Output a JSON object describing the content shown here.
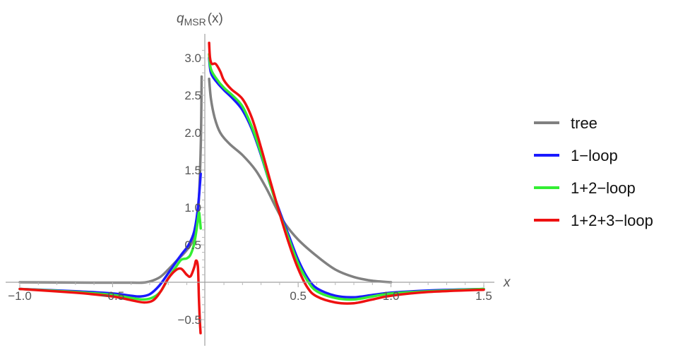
{
  "chart_data": {
    "type": "line",
    "ylabel_main": "q",
    "ylabel_sub": "MSR",
    "ylabel_suffix": "(x)",
    "xlabel": "x",
    "xlim": [
      -1.0,
      1.5
    ],
    "ylim": [
      -0.65,
      3.2
    ],
    "x_ticks": [
      {
        "value": -1.0,
        "label": "−1.0"
      },
      {
        "value": -0.5,
        "label": "−0.5"
      },
      {
        "value": 0.5,
        "label": "0.5"
      },
      {
        "value": 1.0,
        "label": "1.0"
      },
      {
        "value": 1.5,
        "label": "1.5"
      }
    ],
    "y_ticks": [
      {
        "value": -0.5,
        "label": "−0.5"
      },
      {
        "value": 0.5,
        "label": "0.5"
      },
      {
        "value": 1.0,
        "label": "1.0"
      },
      {
        "value": 1.5,
        "label": "1.5"
      },
      {
        "value": 2.0,
        "label": "2.0"
      },
      {
        "value": 2.5,
        "label": "2.5"
      },
      {
        "value": 3.0,
        "label": "3.0"
      }
    ],
    "grid": false,
    "legend_position": "right",
    "series": [
      {
        "name": "tree",
        "color": "#808080",
        "segments": [
          [
            [
              -1.0,
              0.0
            ],
            [
              -0.6,
              -0.005
            ],
            [
              -0.4,
              -0.005
            ],
            [
              -0.32,
              0.0
            ],
            [
              -0.25,
              0.06
            ],
            [
              -0.2,
              0.17
            ],
            [
              -0.15,
              0.3
            ],
            [
              -0.1,
              0.43
            ],
            [
              -0.06,
              0.6
            ],
            [
              -0.04,
              0.9
            ],
            [
              -0.025,
              1.8
            ],
            [
              -0.02,
              2.75
            ]
          ],
          [
            [
              0.02,
              2.72
            ],
            [
              0.03,
              2.45
            ],
            [
              0.05,
              2.2
            ],
            [
              0.08,
              2.0
            ],
            [
              0.13,
              1.85
            ],
            [
              0.2,
              1.7
            ],
            [
              0.27,
              1.5
            ],
            [
              0.33,
              1.25
            ],
            [
              0.38,
              1.0
            ],
            [
              0.43,
              0.78
            ],
            [
              0.5,
              0.57
            ],
            [
              0.6,
              0.35
            ],
            [
              0.7,
              0.17
            ],
            [
              0.8,
              0.07
            ],
            [
              0.9,
              0.02
            ],
            [
              1.0,
              0.0
            ]
          ]
        ]
      },
      {
        "name": "1-loop",
        "color": "#1a1aff",
        "segments": [
          [
            [
              -1.0,
              -0.09
            ],
            [
              -0.7,
              -0.12
            ],
            [
              -0.5,
              -0.15
            ],
            [
              -0.4,
              -0.18
            ],
            [
              -0.35,
              -0.19
            ],
            [
              -0.3,
              -0.16
            ],
            [
              -0.25,
              -0.05
            ],
            [
              -0.2,
              0.12
            ],
            [
              -0.15,
              0.3
            ],
            [
              -0.12,
              0.4
            ],
            [
              -0.09,
              0.5
            ],
            [
              -0.06,
              0.68
            ],
            [
              -0.04,
              1.0
            ],
            [
              -0.025,
              1.45
            ]
          ],
          [
            [
              0.02,
              3.0
            ],
            [
              0.03,
              2.8
            ],
            [
              0.06,
              2.68
            ],
            [
              0.1,
              2.57
            ],
            [
              0.15,
              2.45
            ],
            [
              0.2,
              2.3
            ],
            [
              0.25,
              2.05
            ],
            [
              0.3,
              1.7
            ],
            [
              0.35,
              1.3
            ],
            [
              0.4,
              0.95
            ],
            [
              0.45,
              0.62
            ],
            [
              0.5,
              0.3
            ],
            [
              0.55,
              0.06
            ],
            [
              0.6,
              -0.08
            ],
            [
              0.7,
              -0.18
            ],
            [
              0.8,
              -0.2
            ],
            [
              0.9,
              -0.17
            ],
            [
              1.0,
              -0.14
            ],
            [
              1.2,
              -0.11
            ],
            [
              1.5,
              -0.09
            ]
          ]
        ]
      },
      {
        "name": "1+2-loop",
        "color": "#33ee33",
        "segments": [
          [
            [
              -1.0,
              -0.09
            ],
            [
              -0.7,
              -0.13
            ],
            [
              -0.5,
              -0.17
            ],
            [
              -0.4,
              -0.21
            ],
            [
              -0.33,
              -0.23
            ],
            [
              -0.28,
              -0.2
            ],
            [
              -0.24,
              -0.12
            ],
            [
              -0.2,
              0.05
            ],
            [
              -0.16,
              0.2
            ],
            [
              -0.13,
              0.3
            ],
            [
              -0.1,
              0.32
            ],
            [
              -0.08,
              0.37
            ],
            [
              -0.06,
              0.52
            ],
            [
              -0.045,
              0.75
            ],
            [
              -0.035,
              0.93
            ],
            [
              -0.03,
              0.85
            ],
            [
              -0.025,
              0.72
            ]
          ],
          [
            [
              0.02,
              3.05
            ],
            [
              0.03,
              2.85
            ],
            [
              0.06,
              2.72
            ],
            [
              0.1,
              2.6
            ],
            [
              0.15,
              2.49
            ],
            [
              0.2,
              2.35
            ],
            [
              0.25,
              2.08
            ],
            [
              0.3,
              1.72
            ],
            [
              0.35,
              1.3
            ],
            [
              0.4,
              0.92
            ],
            [
              0.45,
              0.58
            ],
            [
              0.5,
              0.25
            ],
            [
              0.55,
              0.02
            ],
            [
              0.6,
              -0.12
            ],
            [
              0.7,
              -0.21
            ],
            [
              0.8,
              -0.23
            ],
            [
              0.9,
              -0.19
            ],
            [
              1.0,
              -0.15
            ],
            [
              1.2,
              -0.12
            ],
            [
              1.5,
              -0.09
            ]
          ]
        ]
      },
      {
        "name": "1+2+3-loop",
        "color": "#ee1111",
        "segments": [
          [
            [
              -1.0,
              -0.09
            ],
            [
              -0.7,
              -0.14
            ],
            [
              -0.5,
              -0.19
            ],
            [
              -0.4,
              -0.24
            ],
            [
              -0.33,
              -0.27
            ],
            [
              -0.28,
              -0.24
            ],
            [
              -0.24,
              -0.12
            ],
            [
              -0.2,
              0.05
            ],
            [
              -0.16,
              0.16
            ],
            [
              -0.13,
              0.18
            ],
            [
              -0.1,
              0.1
            ],
            [
              -0.08,
              0.08
            ],
            [
              -0.06,
              0.2
            ],
            [
              -0.05,
              0.29
            ],
            [
              -0.04,
              0.2
            ],
            [
              -0.035,
              -0.2
            ],
            [
              -0.03,
              -0.5
            ],
            [
              -0.026,
              -0.68
            ]
          ],
          [
            [
              0.02,
              3.2
            ],
            [
              0.025,
              3.0
            ],
            [
              0.035,
              2.92
            ],
            [
              0.055,
              2.92
            ],
            [
              0.08,
              2.82
            ],
            [
              0.1,
              2.7
            ],
            [
              0.14,
              2.58
            ],
            [
              0.2,
              2.45
            ],
            [
              0.25,
              2.2
            ],
            [
              0.3,
              1.8
            ],
            [
              0.35,
              1.35
            ],
            [
              0.4,
              0.92
            ],
            [
              0.45,
              0.52
            ],
            [
              0.5,
              0.18
            ],
            [
              0.55,
              -0.07
            ],
            [
              0.6,
              -0.19
            ],
            [
              0.7,
              -0.27
            ],
            [
              0.8,
              -0.28
            ],
            [
              0.9,
              -0.23
            ],
            [
              1.0,
              -0.18
            ],
            [
              1.2,
              -0.13
            ],
            [
              1.5,
              -0.1
            ]
          ]
        ]
      }
    ]
  }
}
